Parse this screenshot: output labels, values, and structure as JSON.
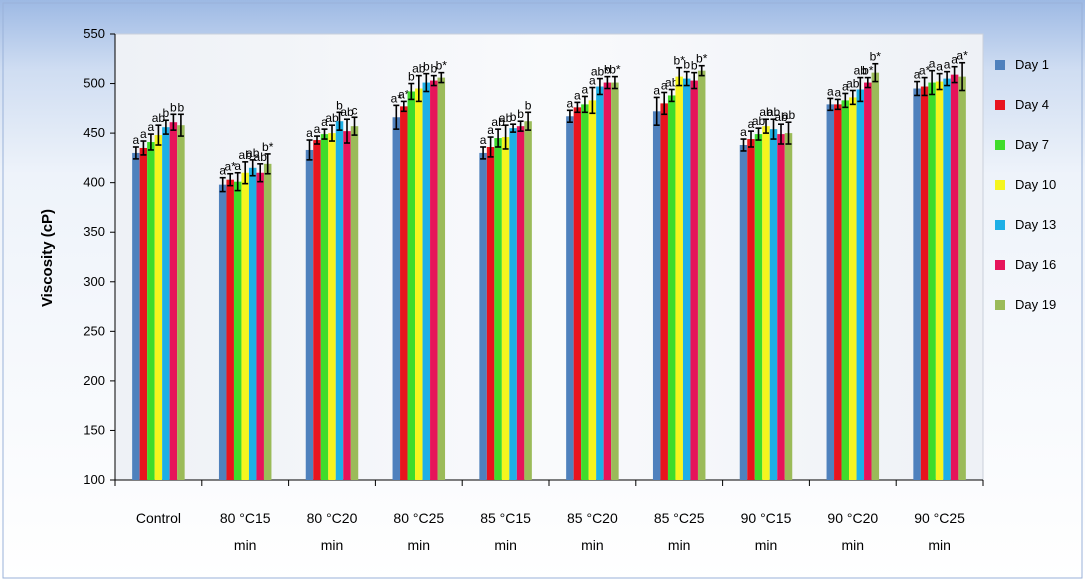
{
  "chart_data": {
    "type": "bar",
    "title": "",
    "xlabel": "",
    "ylabel": "Viscosity (cP)",
    "ylim": [
      100,
      550
    ],
    "yticks": [
      100,
      150,
      200,
      250,
      300,
      350,
      400,
      450,
      500,
      550
    ],
    "grid": false,
    "legend_position": "right",
    "categories": [
      [
        "Control",
        ""
      ],
      [
        "80 °C15",
        "min"
      ],
      [
        "80 °C20",
        "min"
      ],
      [
        "80 °C25",
        "min"
      ],
      [
        "85 °C15",
        "min"
      ],
      [
        "85 °C20",
        "min"
      ],
      [
        "85 °C25",
        "min"
      ],
      [
        "90 °C15",
        "min"
      ],
      [
        "90 °C20",
        "min"
      ],
      [
        "90 °C25",
        "min"
      ]
    ],
    "series": [
      {
        "name": "Day 1",
        "color": "#4F81BD",
        "values": [
          430,
          398,
          433,
          466,
          430,
          467,
          472,
          438,
          479,
          495
        ],
        "errors": [
          6,
          7,
          10,
          12,
          6,
          6,
          14,
          6,
          6,
          7
        ]
      },
      {
        "name": "Day 4",
        "color": "#E8141E",
        "values": [
          435,
          403,
          443,
          477,
          436,
          476,
          480,
          444,
          479,
          497
        ],
        "errors": [
          7,
          6,
          4,
          5,
          10,
          5,
          11,
          8,
          5,
          9
        ]
      },
      {
        "name": "Day 7",
        "color": "#3FDC2B",
        "values": [
          441,
          401,
          449,
          492,
          445,
          479,
          488,
          449,
          483,
          501
        ],
        "errors": [
          8,
          9,
          5,
          8,
          9,
          8,
          6,
          6,
          7,
          12
        ]
      },
      {
        "name": "Day 10",
        "color": "#F5F51E",
        "values": [
          448,
          410,
          450,
          495,
          446,
          483,
          507,
          457,
          486,
          502
        ],
        "errors": [
          10,
          11,
          8,
          13,
          12,
          13,
          9,
          7,
          7,
          8
        ]
      },
      {
        "name": "Day 13",
        "color": "#1EAFE6",
        "values": [
          456,
          415,
          462,
          501,
          455,
          497,
          505,
          454,
          494,
          505
        ],
        "errors": [
          7,
          8,
          9,
          9,
          4,
          8,
          7,
          10,
          12,
          7
        ]
      },
      {
        "name": "Day 16",
        "color": "#E6145A",
        "values": [
          461,
          410,
          452,
          503,
          457,
          501,
          503,
          449,
          501,
          509
        ],
        "errors": [
          8,
          9,
          12,
          5,
          5,
          6,
          8,
          10,
          5,
          8
        ]
      },
      {
        "name": "Day 19",
        "color": "#9BBB59",
        "values": [
          458,
          419,
          457,
          506,
          462,
          501,
          513,
          450,
          511,
          507
        ],
        "errors": [
          11,
          10,
          9,
          5,
          9,
          6,
          5,
          11,
          9,
          14
        ]
      }
    ],
    "annotations": [
      [
        "a",
        "a",
        "a",
        "ab",
        "b",
        "b",
        "b"
      ],
      [
        "a",
        "a*",
        "a",
        "ab",
        "ab",
        "ab",
        "b*"
      ],
      [
        "a",
        "a",
        "a",
        "ab",
        "b",
        "ab",
        "c"
      ],
      [
        "a*",
        "a*",
        "b",
        "ab",
        "b",
        "b",
        "b*"
      ],
      [
        "a",
        "a",
        "ab",
        "ab",
        "b",
        "b",
        "b"
      ],
      [
        "a",
        "a",
        "a",
        "a",
        "ab*",
        "b",
        "b*"
      ],
      [
        "a",
        "a",
        "ab",
        "b*",
        "b",
        "b",
        "b*"
      ],
      [
        "a",
        "a",
        "ab",
        "ab",
        "ab",
        "ab",
        "ab"
      ],
      [
        "a",
        "a",
        "a",
        "ab",
        "ab",
        "b*",
        "b*"
      ],
      [
        "a",
        "a*",
        "a",
        "a",
        "a",
        "a",
        "a*"
      ]
    ]
  }
}
